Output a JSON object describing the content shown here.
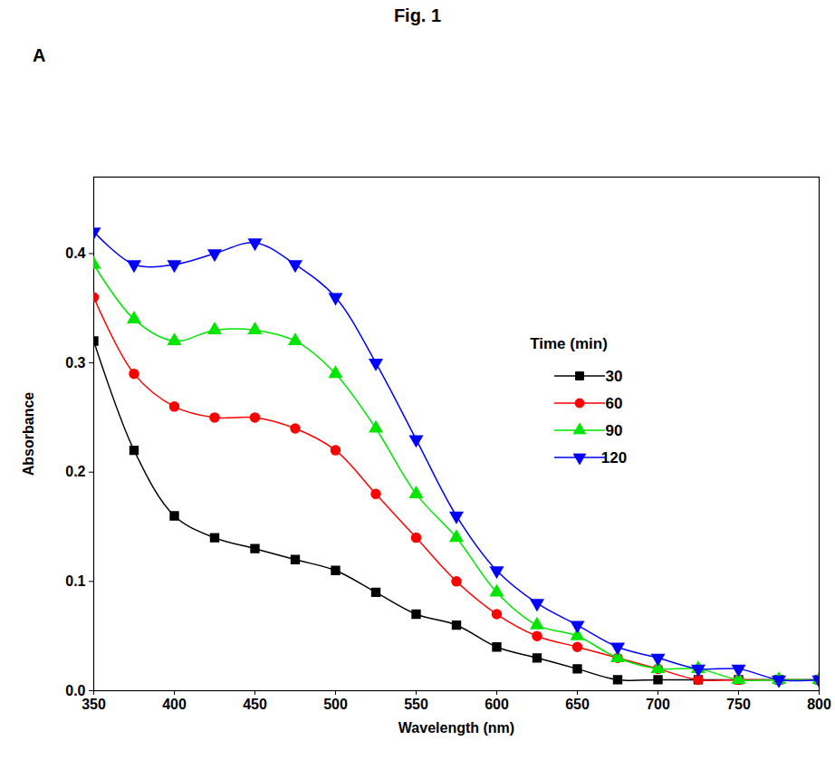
{
  "chart_data": {
    "type": "line",
    "title": "Fig. 1",
    "annotations": [
      "A"
    ],
    "x_label": "Wavelength (nm)",
    "y_label": "Absorbance",
    "x": [
      350,
      375,
      400,
      425,
      450,
      475,
      500,
      525,
      550,
      575,
      600,
      625,
      650,
      675,
      700,
      725,
      750,
      775,
      800
    ],
    "series": [
      {
        "name": "30",
        "color": "#000000",
        "marker": "square",
        "values": [
          0.32,
          0.22,
          0.16,
          0.14,
          0.13,
          0.12,
          0.11,
          0.09,
          0.07,
          0.06,
          0.04,
          0.03,
          0.02,
          0.01,
          0.01,
          0.01,
          0.01,
          0.01,
          0.01
        ]
      },
      {
        "name": "60",
        "color": "#ff0000",
        "marker": "circle",
        "values": [
          0.36,
          0.29,
          0.26,
          0.25,
          0.25,
          0.24,
          0.22,
          0.18,
          0.14,
          0.1,
          0.07,
          0.05,
          0.04,
          0.03,
          0.02,
          0.01,
          0.01,
          0.01,
          0.01
        ]
      },
      {
        "name": "90",
        "color": "#00e600",
        "marker": "triangle-up",
        "values": [
          0.39,
          0.34,
          0.32,
          0.33,
          0.33,
          0.32,
          0.29,
          0.24,
          0.18,
          0.14,
          0.09,
          0.06,
          0.05,
          0.03,
          0.02,
          0.02,
          0.01,
          0.01,
          0.01
        ]
      },
      {
        "name": "120",
        "color": "#0000ff",
        "marker": "triangle-down",
        "values": [
          0.42,
          0.39,
          0.39,
          0.4,
          0.41,
          0.39,
          0.36,
          0.3,
          0.23,
          0.16,
          0.11,
          0.08,
          0.06,
          0.04,
          0.03,
          0.02,
          0.02,
          0.01,
          0.01
        ]
      }
    ],
    "legend_title": "Time (min)",
    "legend": "right",
    "xlim": [
      350,
      800
    ],
    "xticks": [
      350,
      400,
      450,
      500,
      550,
      600,
      650,
      700,
      750,
      800
    ],
    "ylim": [
      0,
      0.47
    ],
    "yticks": [
      {
        "value": 0,
        "label": "0.0"
      },
      0.1,
      0.2,
      0.3,
      0.4
    ],
    "grid": false
  }
}
